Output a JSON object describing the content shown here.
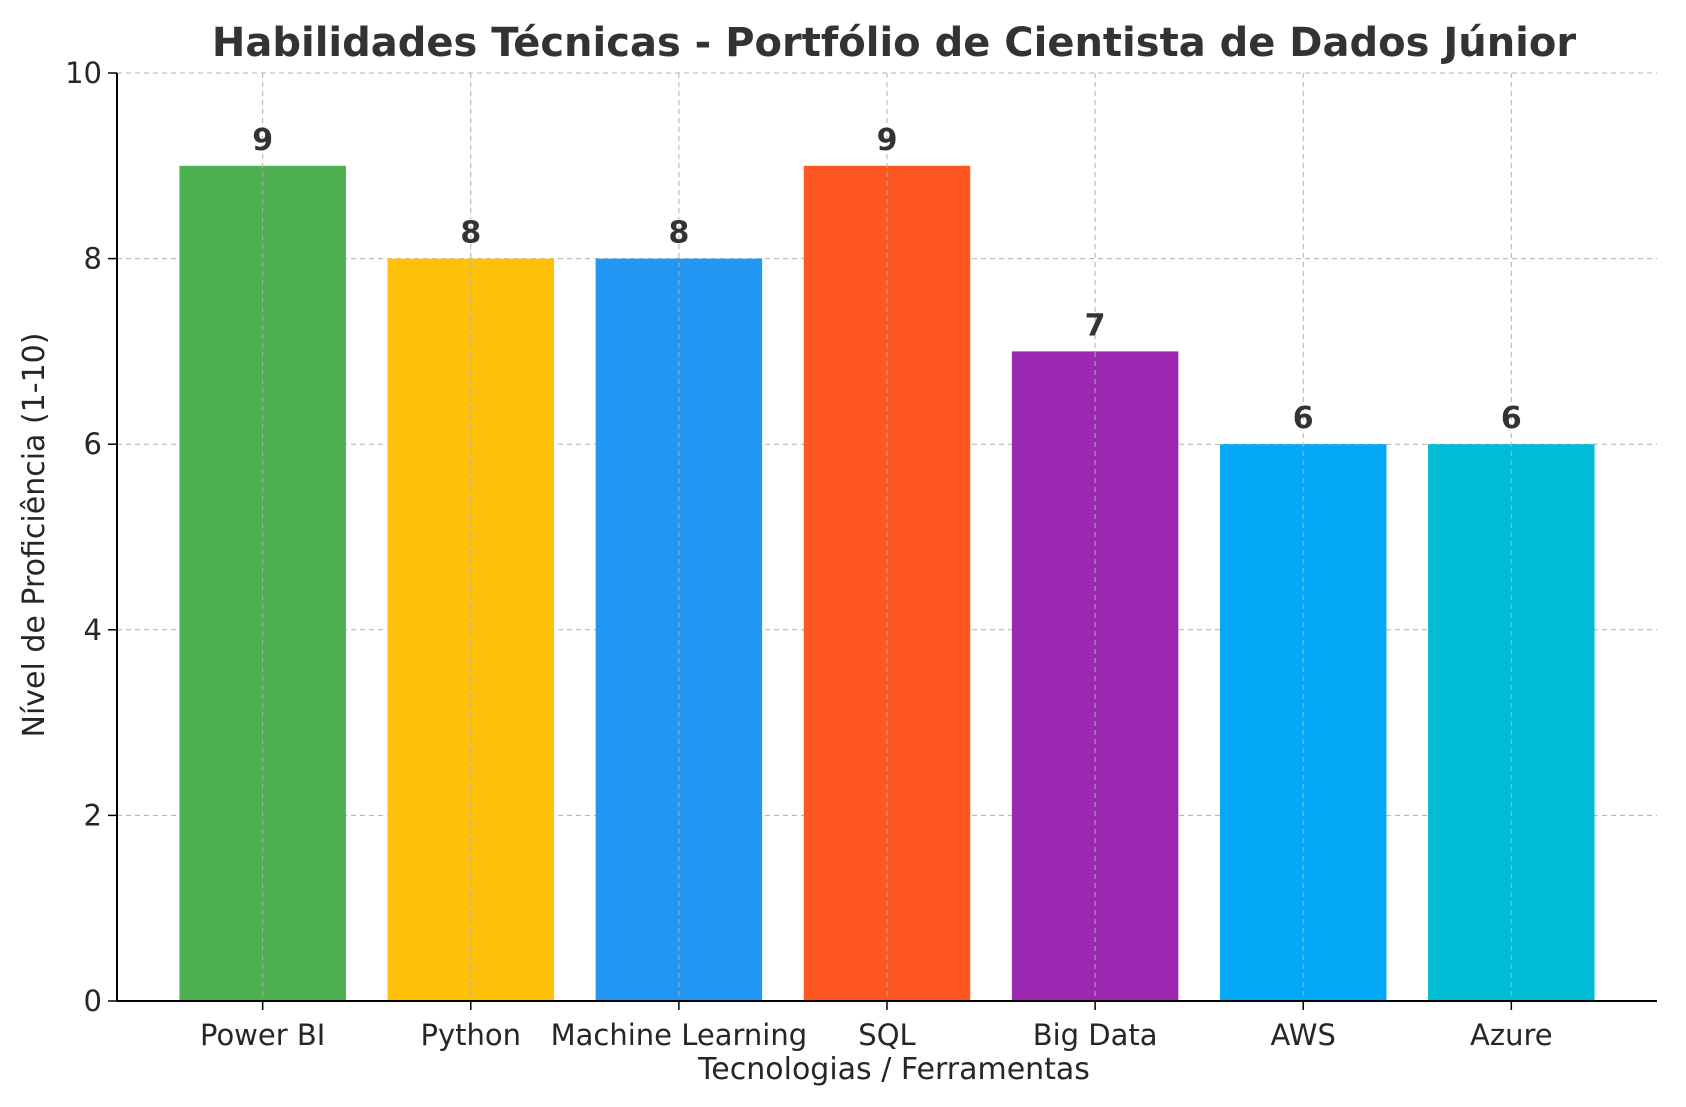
{
  "chart_data": {
    "type": "bar",
    "title": "Habilidades Técnicas - Portfólio de Cientista de Dados Júnior",
    "xlabel": "Tecnologias / Ferramentas",
    "ylabel": "Nível de Proficiência (1-10)",
    "categories": [
      "Power BI",
      "Python",
      "Machine Learning",
      "SQL",
      "Big Data",
      "AWS",
      "Azure"
    ],
    "values": [
      9,
      8,
      8,
      9,
      7,
      6,
      6
    ],
    "data_labels": [
      "9",
      "8",
      "8",
      "9",
      "7",
      "6",
      "6"
    ],
    "colors": [
      "#4caf50",
      "#ffc107",
      "#2196f3",
      "#ff5722",
      "#9c27b0",
      "#03a9f4",
      "#00bcd4"
    ],
    "ylim": [
      0,
      10
    ],
    "yticks": [
      0,
      2,
      4,
      6,
      8,
      10
    ],
    "ytick_labels": [
      "0",
      "2",
      "4",
      "6",
      "8",
      "10"
    ],
    "grid": true,
    "legend": "none"
  }
}
